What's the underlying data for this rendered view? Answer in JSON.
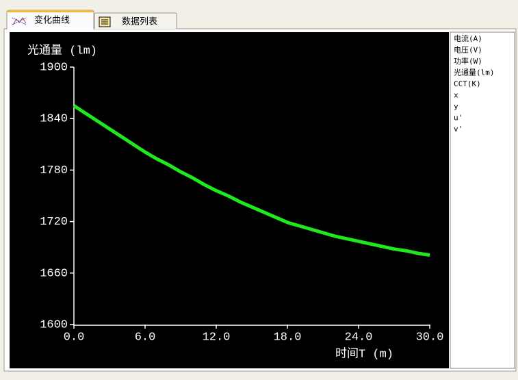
{
  "tabs": [
    "变化曲线",
    "数据列表"
  ],
  "chart_data": {
    "type": "line",
    "ylabel": "光通量 (lm)",
    "xlabel": "时间T  (m)",
    "color": "#1fe81f",
    "x": [
      0,
      1,
      2,
      3,
      4,
      5,
      6,
      7,
      8,
      9,
      10,
      11,
      12,
      13,
      14,
      15,
      16,
      17,
      18,
      19,
      20,
      21,
      22,
      23,
      24,
      25,
      26,
      27,
      28,
      29,
      30
    ],
    "values": [
      1855,
      1846,
      1837,
      1828,
      1819,
      1810,
      1801,
      1793,
      1786,
      1778,
      1771,
      1763,
      1756,
      1750,
      1743,
      1737,
      1731,
      1725,
      1719,
      1715,
      1711,
      1707,
      1703,
      1700,
      1697,
      1694,
      1691,
      1688,
      1686,
      1683,
      1681
    ],
    "xlim": [
      0,
      30
    ],
    "ylim": [
      1600,
      1900
    ],
    "xticks": [
      {
        "value": 0,
        "label": "0.0"
      },
      {
        "value": 6,
        "label": "6.0"
      },
      {
        "value": 12,
        "label": "12.0"
      },
      {
        "value": 18,
        "label": "18.0"
      },
      {
        "value": 24,
        "label": "24.0"
      },
      {
        "value": 30,
        "label": "30.0"
      }
    ],
    "yticks": [
      1600,
      1660,
      1720,
      1780,
      1840,
      1900
    ]
  },
  "parameter_list": [
    "电流(A)",
    "电压(V)",
    "功率(W)",
    "光通量(lm)",
    "CCT(K)",
    "x",
    "y",
    "u'",
    "v'"
  ]
}
